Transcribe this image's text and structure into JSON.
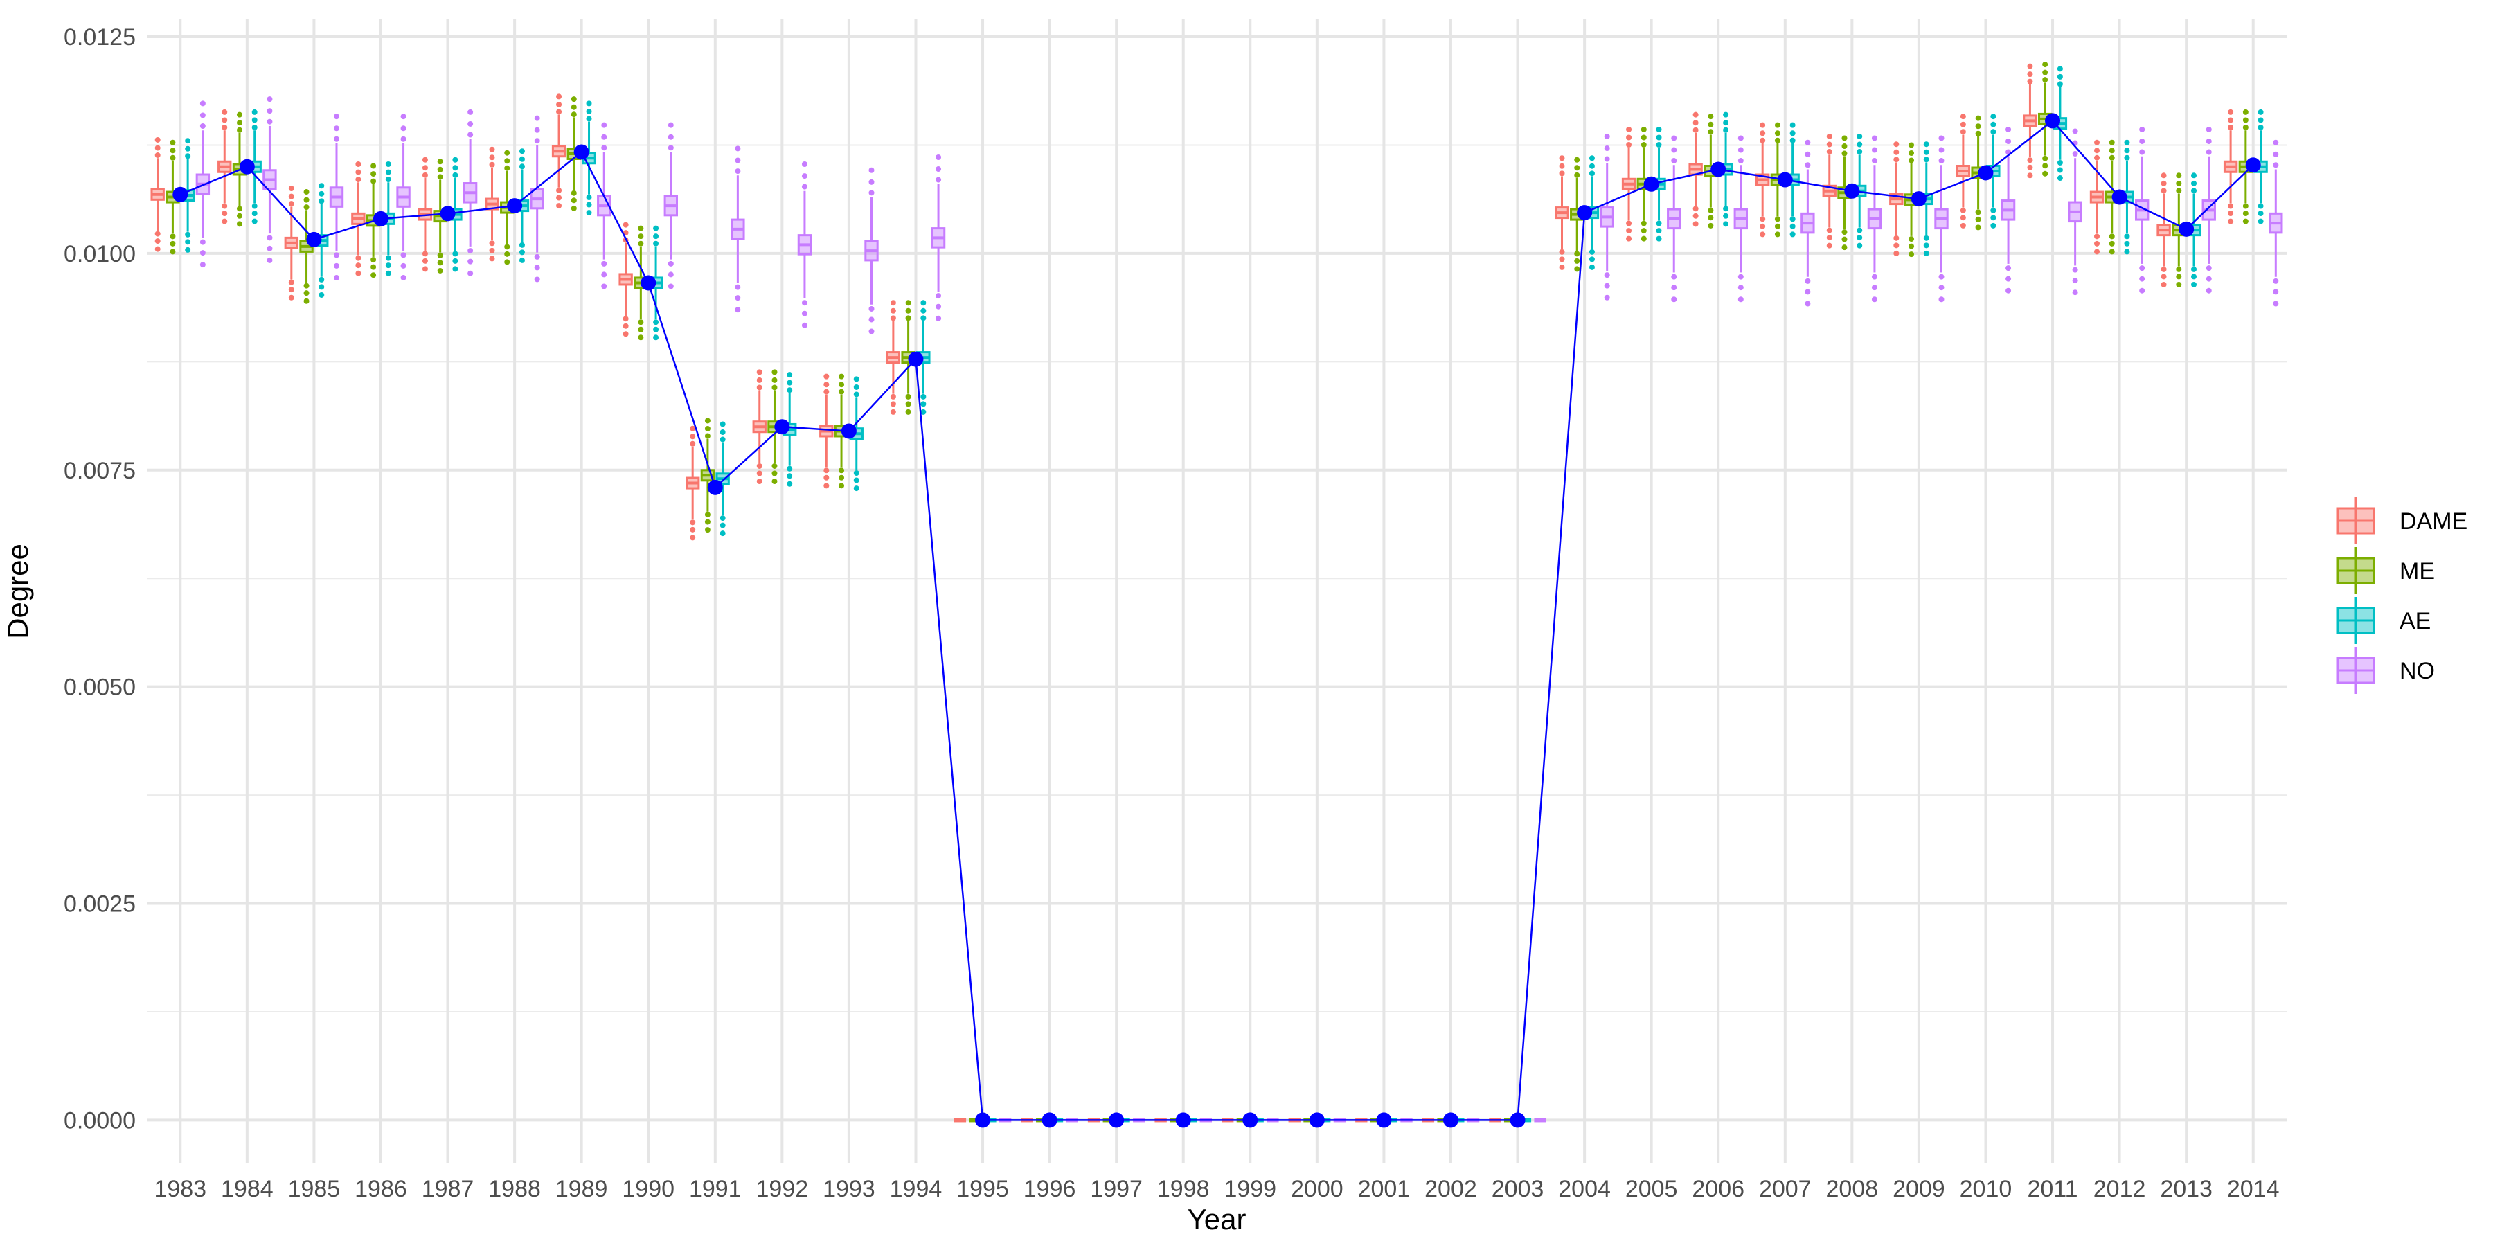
{
  "chart_data": {
    "type": "box",
    "title": "",
    "xlabel": "Year",
    "ylabel": "Degree",
    "x": [
      1983,
      1984,
      1985,
      1986,
      1987,
      1988,
      1989,
      1990,
      1991,
      1992,
      1993,
      1994,
      1995,
      1996,
      1997,
      1998,
      1999,
      2000,
      2001,
      2002,
      2003,
      2004,
      2005,
      2006,
      2007,
      2008,
      2009,
      2010,
      2011,
      2012,
      2013,
      2014
    ],
    "ylim": [
      -0.0005,
      0.0127
    ],
    "yticks": [
      "0.0000",
      "0.0025",
      "0.0050",
      "0.0075",
      "0.0100",
      "0.0125"
    ],
    "grid": true,
    "legend_position": "right",
    "series": [
      {
        "name": "DAME",
        "color": "#F8766D",
        "medians": [
          0.01068,
          0.011,
          0.01012,
          0.0104,
          0.01045,
          0.01057,
          0.01118,
          0.0097,
          0.00735,
          0.008,
          0.00795,
          0.0088,
          0,
          0,
          0,
          0,
          0,
          0,
          0,
          0,
          0,
          0.01047,
          0.0108,
          0.01097,
          0.01085,
          0.01072,
          0.01063,
          0.01095,
          0.01153,
          0.01065,
          0.01027,
          0.011
        ]
      },
      {
        "name": "ME",
        "color": "#7CAE00",
        "medians": [
          0.01065,
          0.01097,
          0.01008,
          0.01038,
          0.01043,
          0.01053,
          0.01115,
          0.00966,
          0.00744,
          0.008,
          0.00795,
          0.0088,
          0,
          0,
          0,
          0,
          0,
          0,
          0,
          0,
          0,
          0.01045,
          0.0108,
          0.01095,
          0.01085,
          0.0107,
          0.01062,
          0.01093,
          0.01155,
          0.01065,
          0.01027,
          0.011
        ]
      },
      {
        "name": "AE",
        "color": "#00BFC4",
        "medians": [
          0.01067,
          0.011,
          0.01015,
          0.0104,
          0.01045,
          0.01055,
          0.0111,
          0.00966,
          0.0074,
          0.00797,
          0.00792,
          0.0088,
          0,
          0,
          0,
          0,
          0,
          0,
          0,
          0,
          0,
          0.01047,
          0.0108,
          0.01097,
          0.01085,
          0.01072,
          0.01063,
          0.01095,
          0.0115,
          0.01065,
          0.01027,
          0.011
        ]
      },
      {
        "name": "NO",
        "color": "#C77CFF",
        "medians": [
          0.0108,
          0.01085,
          0.01065,
          0.01065,
          0.0107,
          0.01063,
          0.01055,
          0.01055,
          0.01028,
          0.0101,
          0.01003,
          0.01018,
          0,
          0,
          0,
          0,
          0,
          0,
          0,
          0,
          0,
          0.01042,
          0.0104,
          0.0104,
          0.01035,
          0.0104,
          0.0104,
          0.0105,
          0.01048,
          0.0105,
          0.0105,
          0.01035
        ]
      }
    ],
    "mean_line": {
      "color": "#0000FF",
      "values": [
        0.01068,
        0.011,
        0.01016,
        0.0104,
        0.01046,
        0.01055,
        0.01117,
        0.00966,
        0.0073,
        0.008,
        0.00795,
        0.00878,
        0,
        0,
        0,
        0,
        0,
        0,
        0,
        0,
        0,
        0.01047,
        0.0108,
        0.01097,
        0.01085,
        0.01072,
        0.01063,
        0.01093,
        0.01153,
        0.01065,
        0.01028,
        0.01102
      ]
    }
  }
}
